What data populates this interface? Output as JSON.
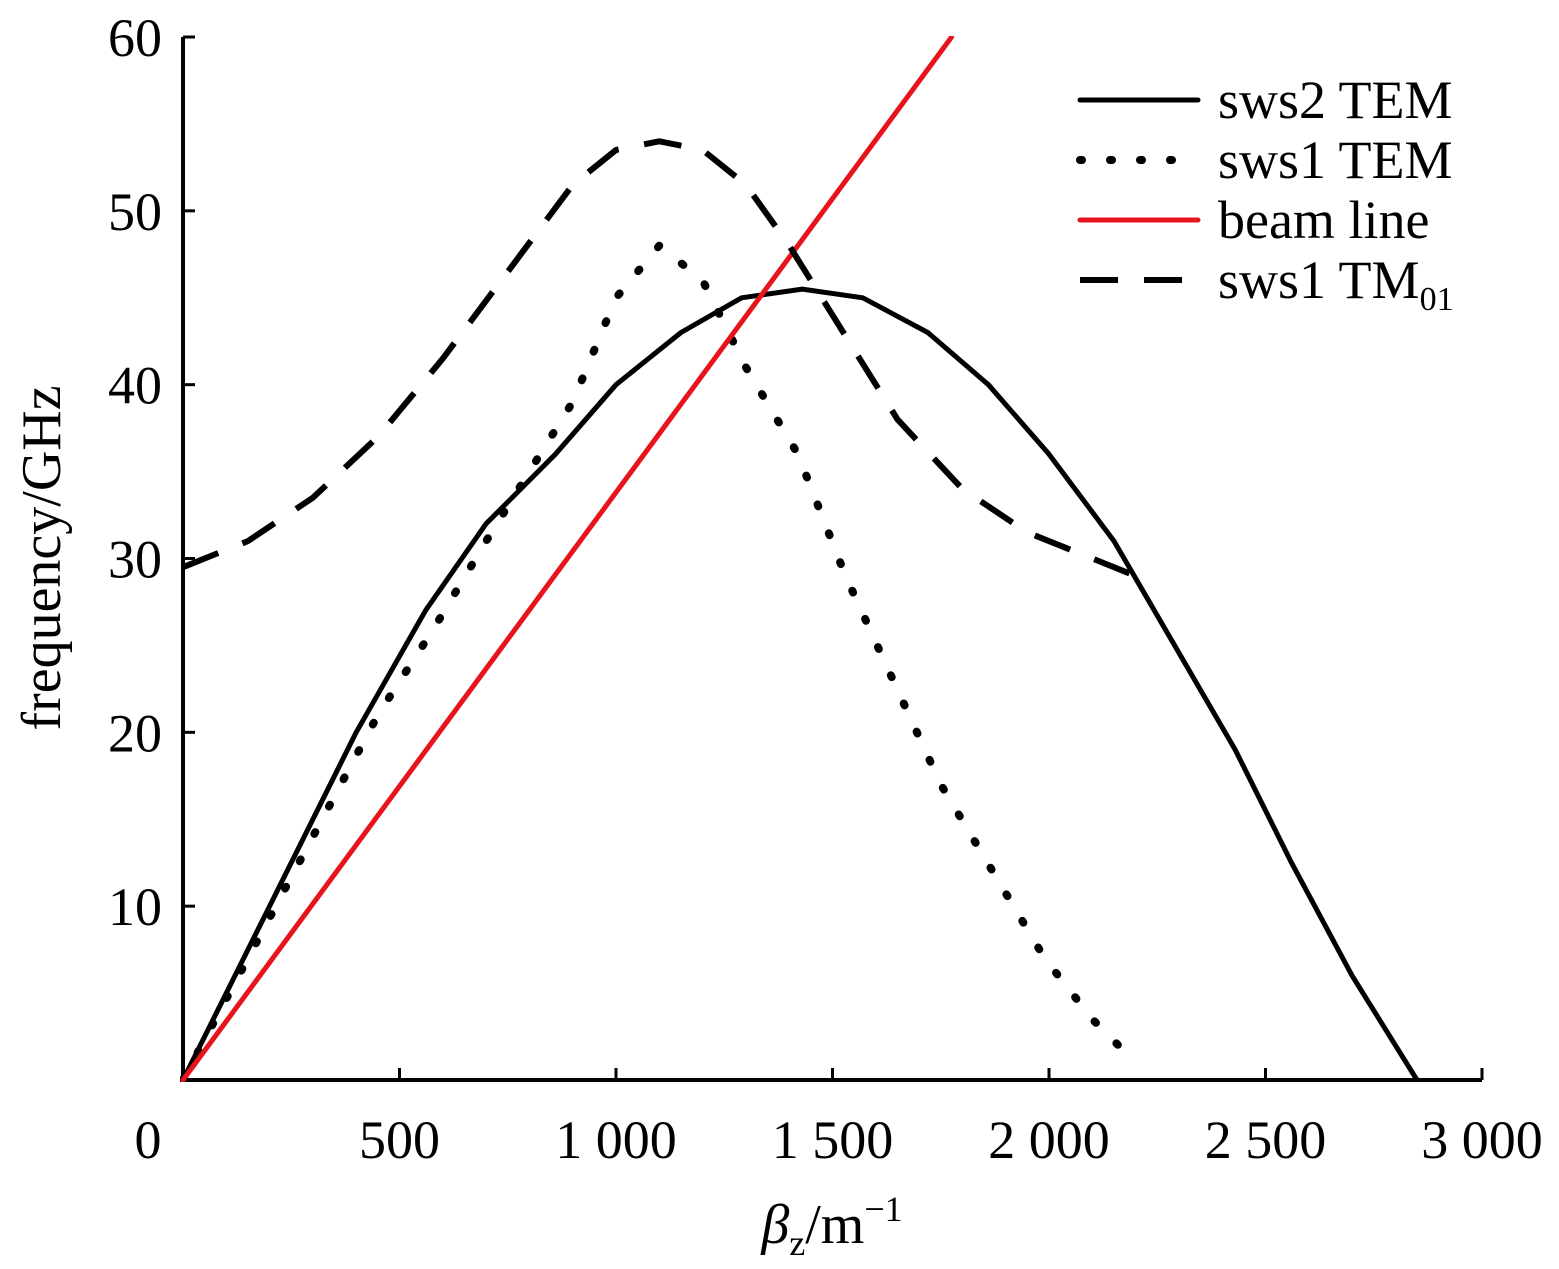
{
  "chart_data": {
    "type": "line",
    "xlabel": {
      "main": "β",
      "sub": "z",
      "unit": "/m",
      "sup": "−1"
    },
    "ylabel": "frequency/GHz",
    "xlim": [
      0,
      3000
    ],
    "ylim": [
      0,
      60
    ],
    "xticks": [
      {
        "value": 0,
        "label": "0"
      },
      {
        "value": 500,
        "label": "500"
      },
      {
        "value": 1000,
        "label": "1 000"
      },
      {
        "value": 1500,
        "label": "1 500"
      },
      {
        "value": 2000,
        "label": "2 000"
      },
      {
        "value": 2500,
        "label": "2 500"
      },
      {
        "value": 3000,
        "label": "3 000"
      }
    ],
    "yticks": [
      {
        "value": 10,
        "label": "10"
      },
      {
        "value": 20,
        "label": "20"
      },
      {
        "value": 30,
        "label": "30"
      },
      {
        "value": 40,
        "label": "40"
      },
      {
        "value": 50,
        "label": "50"
      },
      {
        "value": 60,
        "label": "60"
      }
    ],
    "grid": false,
    "legend_position": "top-right",
    "series": [
      {
        "name": "sws2 TEM",
        "label_main": "sws2 TEM",
        "label_sub": "",
        "style": "solid",
        "color": "#000000",
        "x": [
          0,
          200,
          400,
          560,
          700,
          860,
          1000,
          1150,
          1290,
          1430,
          1570,
          1720,
          1860,
          2000,
          2150,
          2290,
          2430,
          2560,
          2700,
          2850
        ],
        "y": [
          0,
          10,
          20,
          27,
          32,
          36,
          40,
          43,
          45,
          45.5,
          45,
          43,
          40,
          36,
          31,
          25,
          19,
          12.5,
          6,
          0
        ]
      },
      {
        "name": "sws1 TEM",
        "label_main": "sws1 TEM",
        "label_sub": "",
        "style": "dotted",
        "color": "#000000",
        "x": [
          0,
          150,
          300,
          450,
          580,
          700,
          800,
          900,
          1000,
          1100,
          1200,
          1300,
          1420,
          1530,
          1640,
          1750,
          1870,
          1990,
          2100,
          2180
        ],
        "y": [
          0,
          7,
          14,
          21,
          26,
          31,
          35,
          39,
          45,
          48,
          46,
          41,
          36,
          29,
          23,
          17,
          12,
          7,
          3.5,
          1.5
        ]
      },
      {
        "name": "beam line",
        "label_main": "beam line",
        "label_sub": "",
        "style": "solid",
        "color": "#e8141b",
        "x": [
          0,
          1775
        ],
        "y": [
          0,
          60
        ]
      },
      {
        "name": "sws1 TM01",
        "label_main": "sws1 TM",
        "label_sub": "01",
        "style": "dashed",
        "color": "#000000",
        "x": [
          0,
          150,
          300,
          450,
          600,
          750,
          900,
          1000,
          1100,
          1200,
          1300,
          1400,
          1500,
          1650,
          1800,
          1950,
          2100,
          2200
        ],
        "y": [
          29.5,
          31,
          33.5,
          37,
          41.5,
          46.5,
          51.5,
          53.5,
          54,
          53.5,
          51.5,
          48,
          44,
          38,
          34,
          31.5,
          30,
          29
        ]
      }
    ]
  }
}
